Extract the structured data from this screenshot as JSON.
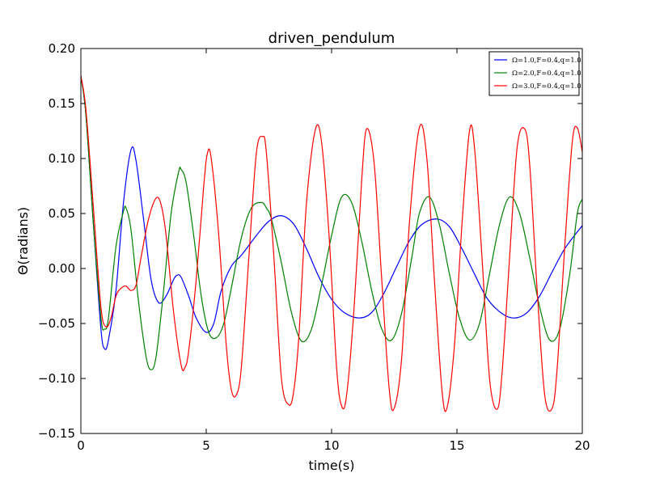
{
  "chart_data": {
    "type": "line",
    "title": "driven_pendulum",
    "xlabel": "time(s)",
    "ylabel": "Θ(radians)",
    "xlim": [
      0,
      20
    ],
    "ylim": [
      -0.15,
      0.2
    ],
    "xticks": [
      0,
      5,
      10,
      15,
      20
    ],
    "yticks": [
      -0.15,
      -0.1,
      -0.05,
      0.0,
      0.05,
      0.1,
      0.15,
      0.2
    ],
    "xtick_labels": [
      "0",
      "5",
      "10",
      "15",
      "20"
    ],
    "ytick_labels": [
      "−0.15",
      "−0.10",
      "−0.05",
      "0.00",
      "0.05",
      "0.10",
      "0.15",
      "0.20"
    ],
    "grid": false,
    "legend": "top-right",
    "series": [
      {
        "name": "Ω=1.0,F=0.4,q=1.0",
        "color": "#0000ff",
        "x": [
          0,
          0.2,
          0.5,
          0.8,
          0.95,
          1.1,
          1.4,
          1.7,
          2.0,
          2.2,
          2.5,
          2.8,
          3.1,
          3.4,
          3.7,
          3.85,
          4.0,
          4.3,
          4.6,
          5.0,
          5.3,
          5.6,
          6.0,
          6.4,
          7.0,
          7.5,
          8.0,
          8.5,
          9.0,
          9.5,
          10.0,
          10.5,
          11.1,
          11.6,
          12.1,
          12.6,
          13.1,
          13.6,
          14.2,
          14.7,
          15.2,
          15.7,
          16.2,
          16.8,
          17.3,
          17.8,
          18.3,
          18.8,
          19.3,
          20.0
        ],
        "y": [
          0.175,
          0.14,
          0.04,
          -0.055,
          -0.073,
          -0.065,
          -0.02,
          0.06,
          0.108,
          0.098,
          0.045,
          -0.01,
          -0.031,
          -0.025,
          -0.01,
          -0.006,
          -0.008,
          -0.025,
          -0.045,
          -0.058,
          -0.05,
          -0.02,
          0.002,
          0.012,
          0.03,
          0.043,
          0.048,
          0.04,
          0.018,
          -0.008,
          -0.028,
          -0.04,
          -0.045,
          -0.04,
          -0.022,
          0.002,
          0.025,
          0.04,
          0.045,
          0.038,
          0.018,
          -0.005,
          -0.027,
          -0.041,
          -0.045,
          -0.04,
          -0.025,
          -0.003,
          0.018,
          0.039
        ]
      },
      {
        "name": "Ω=2.0,F=0.4,q=1.0",
        "color": "#008000",
        "x": [
          0,
          0.2,
          0.5,
          0.8,
          0.95,
          1.1,
          1.4,
          1.7,
          1.8,
          2.0,
          2.3,
          2.6,
          2.8,
          3.0,
          3.3,
          3.6,
          3.9,
          4.0,
          4.2,
          4.5,
          4.8,
          5.1,
          5.4,
          5.7,
          6.0,
          6.4,
          6.8,
          7.2,
          7.4,
          7.6,
          8.0,
          8.4,
          8.8,
          9.2,
          9.6,
          10.0,
          10.4,
          10.8,
          11.2,
          11.6,
          12.0,
          12.4,
          12.8,
          13.2,
          13.5,
          13.9,
          14.3,
          14.7,
          15.1,
          15.5,
          15.9,
          16.3,
          16.7,
          17.1,
          17.5,
          17.9,
          18.3,
          18.7,
          19.1,
          19.5,
          19.8,
          20.0
        ],
        "y": [
          0.175,
          0.14,
          0.04,
          -0.045,
          -0.055,
          -0.045,
          0.02,
          0.052,
          0.055,
          0.035,
          -0.03,
          -0.08,
          -0.092,
          -0.08,
          -0.02,
          0.05,
          0.088,
          0.09,
          0.078,
          0.03,
          -0.025,
          -0.058,
          -0.063,
          -0.05,
          -0.018,
          0.028,
          0.055,
          0.06,
          0.055,
          0.045,
          0.005,
          -0.04,
          -0.066,
          -0.055,
          -0.015,
          0.03,
          0.065,
          0.06,
          0.025,
          -0.02,
          -0.055,
          -0.065,
          -0.04,
          0.01,
          0.05,
          0.065,
          0.04,
          -0.005,
          -0.045,
          -0.065,
          -0.05,
          -0.005,
          0.04,
          0.065,
          0.05,
          0.01,
          -0.035,
          -0.065,
          -0.055,
          -0.005,
          0.05,
          0.063
        ]
      },
      {
        "name": "Ω=3.0,F=0.4,q=1.0",
        "color": "#ff0000",
        "x": [
          0,
          0.2,
          0.5,
          0.8,
          1.0,
          1.2,
          1.4,
          1.6,
          1.8,
          2.0,
          2.2,
          2.4,
          2.7,
          3.0,
          3.2,
          3.4,
          3.7,
          4.0,
          4.15,
          4.3,
          4.6,
          4.9,
          5.05,
          5.2,
          5.5,
          5.8,
          6.0,
          6.2,
          6.4,
          6.7,
          7.0,
          7.25,
          7.4,
          7.7,
          8.0,
          8.3,
          8.5,
          8.7,
          9.0,
          9.35,
          9.6,
          9.9,
          10.2,
          10.4,
          10.6,
          10.9,
          11.2,
          11.4,
          11.7,
          12.0,
          12.3,
          12.5,
          12.8,
          13.1,
          13.5,
          13.8,
          14.1,
          14.4,
          14.6,
          14.9,
          15.2,
          15.5,
          15.7,
          16.0,
          16.3,
          16.6,
          16.8,
          17.1,
          17.4,
          17.7,
          17.9,
          18.2,
          18.5,
          18.8,
          19.0,
          19.3,
          19.6,
          19.8,
          20.0
        ],
        "y": [
          0.175,
          0.145,
          0.055,
          -0.035,
          -0.053,
          -0.045,
          -0.025,
          -0.018,
          -0.016,
          -0.02,
          -0.015,
          0.01,
          0.045,
          0.064,
          0.058,
          0.03,
          -0.04,
          -0.088,
          -0.09,
          -0.075,
          -0.01,
          0.075,
          0.105,
          0.1,
          0.03,
          -0.07,
          -0.11,
          -0.115,
          -0.09,
          0.01,
          0.105,
          0.12,
          0.105,
          0.01,
          -0.1,
          -0.124,
          -0.11,
          -0.06,
          0.06,
          0.126,
          0.115,
          0.03,
          -0.09,
          -0.125,
          -0.115,
          -0.035,
          0.08,
          0.127,
          0.095,
          -0.01,
          -0.11,
          -0.127,
          -0.08,
          0.04,
          0.128,
          0.1,
          -0.01,
          -0.11,
          -0.127,
          -0.07,
          0.04,
          0.125,
          0.11,
          0.01,
          -0.1,
          -0.128,
          -0.095,
          0.01,
          0.11,
          0.127,
          0.095,
          -0.02,
          -0.115,
          -0.127,
          -0.09,
          0.02,
          0.115,
          0.128,
          0.106
        ]
      }
    ]
  }
}
